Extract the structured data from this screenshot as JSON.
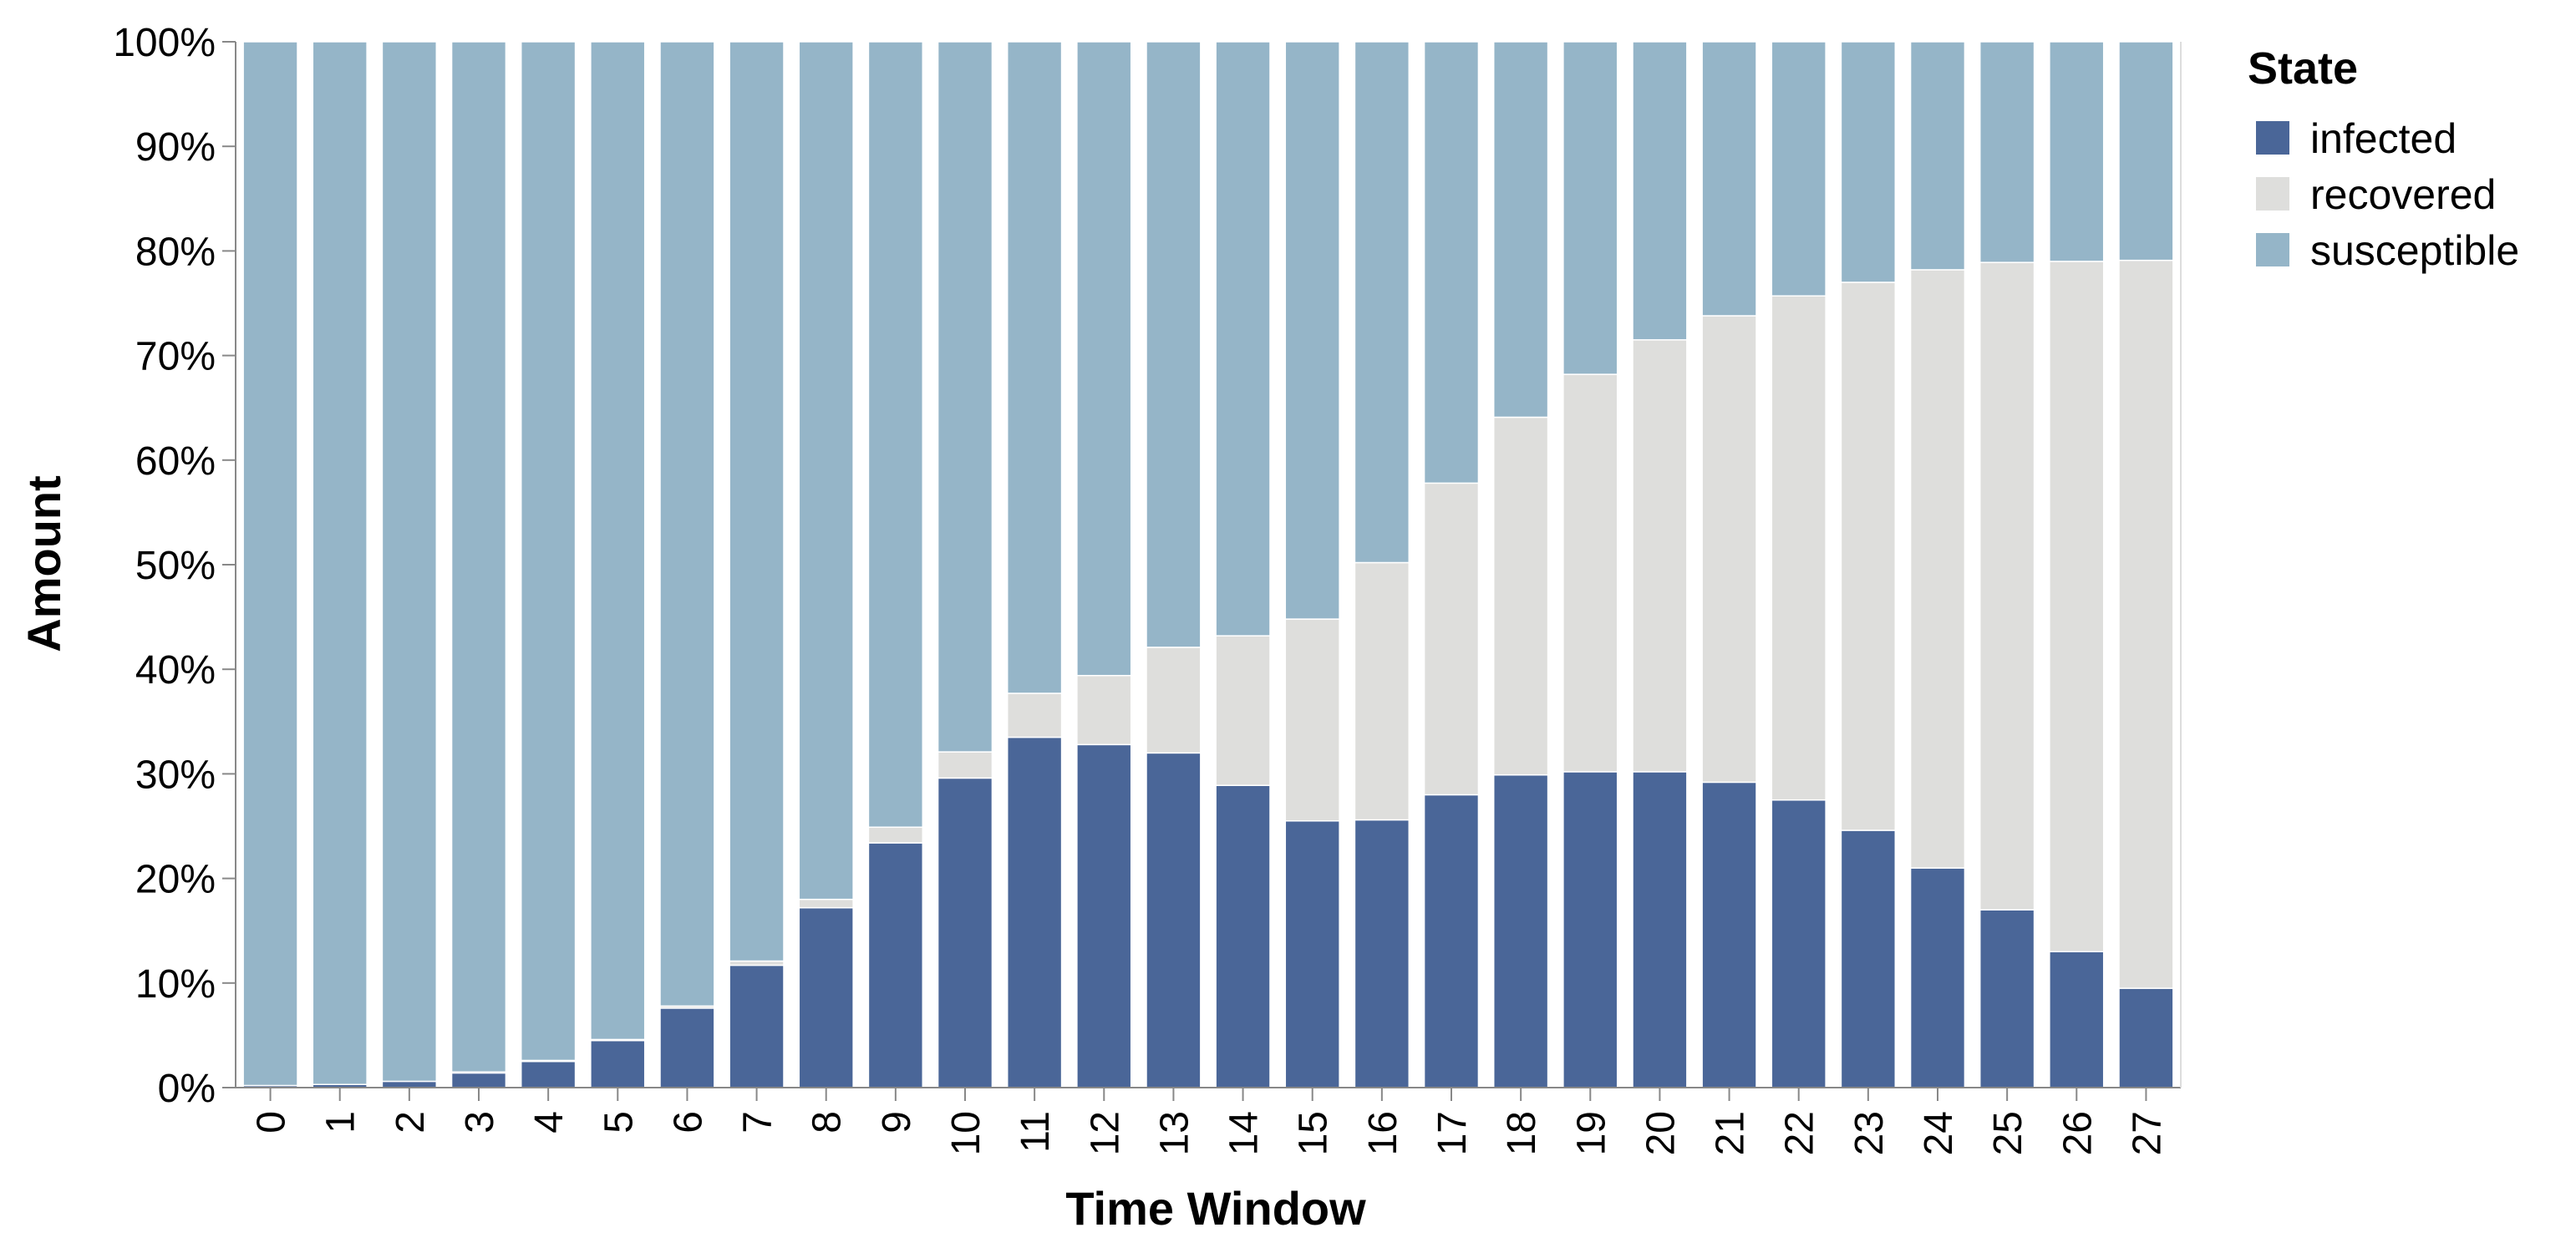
{
  "chart_data": {
    "type": "bar",
    "stacked": true,
    "normalized": true,
    "xlabel": "Time Window",
    "ylabel": "Amount",
    "ylim": [
      0,
      100
    ],
    "y_ticks": [
      "0%",
      "10%",
      "20%",
      "30%",
      "40%",
      "50%",
      "60%",
      "70%",
      "80%",
      "90%",
      "100%"
    ],
    "categories": [
      "0",
      "1",
      "2",
      "3",
      "4",
      "5",
      "6",
      "7",
      "8",
      "9",
      "10",
      "11",
      "12",
      "13",
      "14",
      "15",
      "16",
      "17",
      "18",
      "19",
      "20",
      "21",
      "22",
      "23",
      "24",
      "25",
      "26",
      "27"
    ],
    "legend": {
      "title": "State",
      "position": "right"
    },
    "series": [
      {
        "name": "infected",
        "color": "#4a6698",
        "values": [
          0.2,
          0.3,
          0.6,
          1.4,
          2.5,
          4.5,
          7.6,
          11.7,
          17.2,
          23.4,
          29.6,
          33.5,
          32.8,
          32.0,
          28.9,
          25.5,
          25.6,
          28.0,
          29.9,
          30.2,
          30.2,
          29.2,
          27.5,
          24.6,
          21.0,
          17.0,
          13.0,
          9.5
        ]
      },
      {
        "name": "recovered",
        "color": "#dededc",
        "values": [
          0.0,
          0.0,
          0.0,
          0.1,
          0.1,
          0.1,
          0.2,
          0.4,
          0.8,
          1.5,
          2.5,
          4.2,
          6.6,
          10.1,
          14.3,
          19.3,
          24.6,
          29.8,
          34.2,
          38.0,
          41.3,
          44.6,
          48.2,
          52.4,
          57.2,
          61.9,
          66.0,
          69.6
        ]
      },
      {
        "name": "susceptible",
        "color": "#95b5c8",
        "values": [
          99.8,
          99.7,
          99.4,
          98.5,
          97.4,
          95.4,
          92.2,
          87.9,
          82.0,
          75.1,
          67.9,
          62.3,
          60.6,
          57.9,
          56.8,
          55.2,
          49.8,
          42.2,
          35.9,
          31.8,
          28.5,
          26.2,
          24.3,
          23.0,
          21.8,
          21.1,
          21.0,
          20.9
        ]
      }
    ]
  }
}
